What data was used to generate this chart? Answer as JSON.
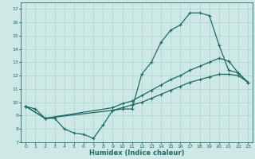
{
  "xlabel": "Humidex (Indice chaleur)",
  "xlim": [
    -0.5,
    23.5
  ],
  "ylim": [
    7,
    17.5
  ],
  "yticks": [
    7,
    8,
    9,
    10,
    11,
    12,
    13,
    14,
    15,
    16,
    17
  ],
  "xticks": [
    0,
    1,
    2,
    3,
    4,
    5,
    6,
    7,
    8,
    9,
    10,
    11,
    12,
    13,
    14,
    15,
    16,
    17,
    18,
    19,
    20,
    21,
    22,
    23
  ],
  "bg_color": "#cde8e5",
  "line_color": "#1e6b65",
  "grid_color": "#b0d8d4",
  "line1_x": [
    0,
    1,
    2,
    3,
    4,
    5,
    6,
    7,
    8,
    9,
    10,
    11,
    12,
    13,
    14,
    15,
    16,
    17,
    18,
    19,
    20,
    21,
    22,
    23
  ],
  "line1_y": [
    9.7,
    9.5,
    8.8,
    8.8,
    8.0,
    7.7,
    7.6,
    7.3,
    8.3,
    9.4,
    9.5,
    9.5,
    12.1,
    13.0,
    14.5,
    15.4,
    15.8,
    16.7,
    16.7,
    16.5,
    14.3,
    12.4,
    12.2,
    11.5
  ],
  "line2_x": [
    0,
    2,
    9,
    10,
    11,
    12,
    13,
    14,
    15,
    16,
    17,
    18,
    19,
    20,
    21,
    22,
    23
  ],
  "line2_y": [
    9.7,
    8.8,
    9.6,
    9.9,
    10.1,
    10.5,
    10.9,
    11.3,
    11.7,
    12.0,
    12.4,
    12.7,
    13.0,
    13.3,
    13.1,
    12.2,
    11.5
  ],
  "line3_x": [
    0,
    2,
    9,
    10,
    11,
    12,
    13,
    14,
    15,
    16,
    17,
    18,
    19,
    20,
    21,
    22,
    23
  ],
  "line3_y": [
    9.7,
    8.8,
    9.4,
    9.6,
    9.8,
    10.0,
    10.3,
    10.6,
    10.9,
    11.2,
    11.5,
    11.7,
    11.9,
    12.1,
    12.1,
    12.0,
    11.5
  ]
}
